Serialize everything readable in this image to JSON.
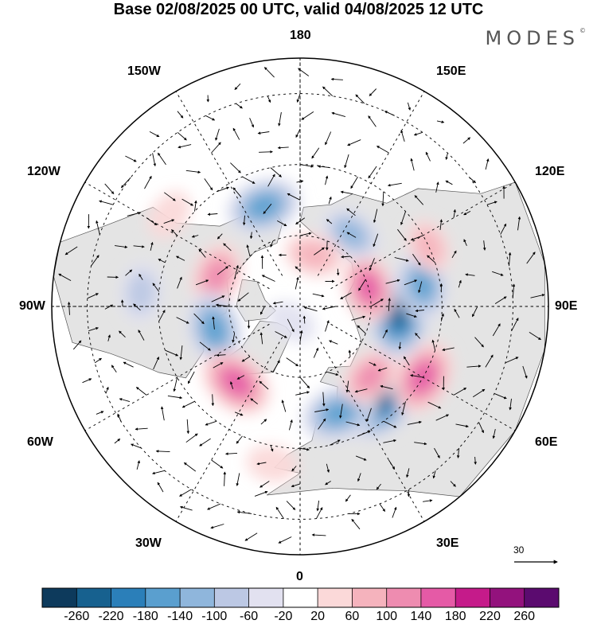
{
  "title": "Base 02/08/2025 00 UTC, valid 04/08/2025 12 UTC",
  "brand": "MODES",
  "brand_mark": "©",
  "longitude_labels": {
    "lon_180": "180",
    "lon_0": "0",
    "lon_90w": "90W",
    "lon_90e": "90E",
    "lon_150w": "150W",
    "lon_150e": "150E",
    "lon_120w": "120W",
    "lon_120e": "120E",
    "lon_60w": "60W",
    "lon_60e": "60E",
    "lon_30w": "30W",
    "lon_30e": "30E"
  },
  "reference_vector": {
    "value": "30"
  },
  "colors": {
    "land_gray": "#e4e4e4",
    "coast": "#555555",
    "scale": [
      "#0d3a5c",
      "#17618f",
      "#2b7fb9",
      "#5a9fcf",
      "#8fb6dc",
      "#bcc8e4",
      "#e2e1f0",
      "#ffffff",
      "#fbd9d9",
      "#f5b3bd",
      "#ee8cb0",
      "#e55aa6",
      "#c51b8a",
      "#93127d",
      "#5b0b6f"
    ]
  },
  "colorbar_ticks": [
    "-260",
    "-220",
    "-180",
    "-140",
    "-100",
    "-60",
    "-20",
    "20",
    "60",
    "100",
    "140",
    "180",
    "220",
    "260"
  ],
  "anomalies": [
    {
      "name": "siberia-blue-core",
      "lon": 40,
      "lat": 55,
      "value": -260
    },
    {
      "name": "scandinavia-blue",
      "lon": 20,
      "lat": 58,
      "value": -180
    },
    {
      "name": "ural-magenta",
      "lon": 60,
      "lat": 50,
      "value": 180
    },
    {
      "name": "west-siberia-pink",
      "lon": 45,
      "lat": 62,
      "value": 120
    },
    {
      "name": "central-asia-blue",
      "lon": 85,
      "lat": 62,
      "value": -240
    },
    {
      "name": "central-asia-blue-2",
      "lon": 100,
      "lat": 55,
      "value": -160
    },
    {
      "name": "north-asia-pink",
      "lon": 105,
      "lat": 70,
      "value": 150
    },
    {
      "name": "far-east-pink",
      "lon": 115,
      "lat": 50,
      "value": 80
    },
    {
      "name": "east-siberia-blue",
      "lon": 145,
      "lat": 65,
      "value": -120
    },
    {
      "name": "bering-pink",
      "lon": 165,
      "lat": 75,
      "value": 100
    },
    {
      "name": "alaska-blue",
      "lon": -160,
      "lat": 60,
      "value": -180
    },
    {
      "name": "canada-pink",
      "lon": -110,
      "lat": 65,
      "value": 140
    },
    {
      "name": "hudson-blue",
      "lon": -75,
      "lat": 65,
      "value": -180
    },
    {
      "name": "pacific-pink",
      "lon": -125,
      "lat": 45,
      "value": 60
    },
    {
      "name": "greenland-magenta",
      "lon": -40,
      "lat": 62,
      "value": 180
    },
    {
      "name": "atlantic-pink",
      "lon": -10,
      "lat": 45,
      "value": 60
    },
    {
      "name": "arctic-blue",
      "lon": -30,
      "lat": 85,
      "value": -60
    },
    {
      "name": "labrador-blue",
      "lon": -95,
      "lat": 45,
      "value": -100
    }
  ]
}
